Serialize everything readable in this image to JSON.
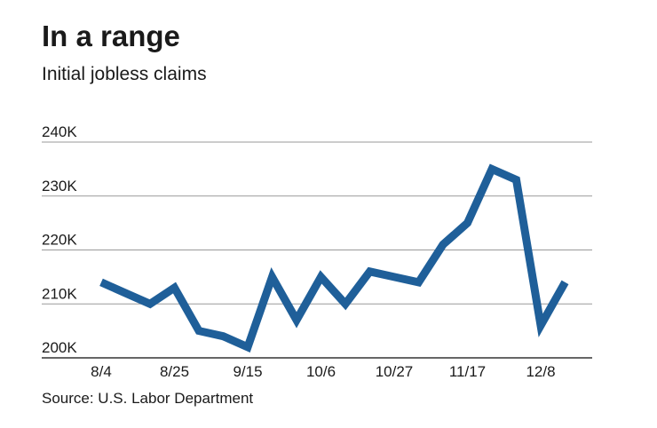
{
  "header": {
    "title": "In a range",
    "subtitle": "Initial jobless claims"
  },
  "footer": {
    "source": "Source: U.S. Labor Department"
  },
  "chart_data": {
    "type": "line",
    "title": "In a range",
    "subtitle": "Initial jobless claims",
    "xlabel": "",
    "ylabel": "",
    "ylim": [
      200000,
      240000
    ],
    "yticks": [
      200000,
      210000,
      220000,
      230000,
      240000
    ],
    "ytick_labels": [
      "200K",
      "210K",
      "220K",
      "230K",
      "240K"
    ],
    "x": [
      "8/4",
      "8/11",
      "8/18",
      "8/25",
      "9/1",
      "9/8",
      "9/15",
      "9/22",
      "9/29",
      "10/6",
      "10/13",
      "10/20",
      "10/27",
      "11/3",
      "11/10",
      "11/17",
      "11/24",
      "12/1",
      "12/8",
      "12/15"
    ],
    "xtick_labels": [
      "8/4",
      "8/25",
      "9/15",
      "10/6",
      "10/27",
      "11/17",
      "12/8"
    ],
    "series": [
      {
        "name": "",
        "color": "#1f5f99",
        "values": [
          214000,
          212000,
          210000,
          213000,
          205000,
          204000,
          202000,
          215000,
          207000,
          215000,
          210000,
          216000,
          215000,
          214000,
          221000,
          225000,
          235000,
          233000,
          206000,
          214000
        ]
      }
    ],
    "grid": true,
    "legend": "none"
  }
}
